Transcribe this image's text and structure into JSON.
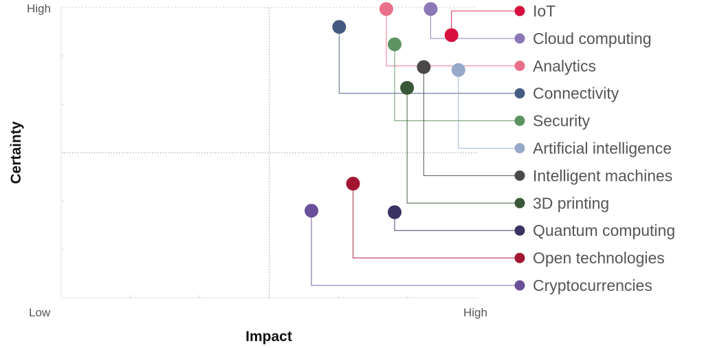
{
  "chart_data": {
    "type": "scatter",
    "title": "",
    "xlabel": "Impact",
    "ylabel": "Certainty",
    "xlim": [
      0,
      6
    ],
    "ylim": [
      0,
      6
    ],
    "x_tick_labels": [
      "Low",
      "High"
    ],
    "y_tick_labels": [
      "High"
    ],
    "grid": true,
    "legend_position": "right",
    "series": [
      {
        "name": "IoT",
        "x": 5.63,
        "y": 5.43,
        "color": "#d7103d"
      },
      {
        "name": "Cloud computing",
        "x": 5.33,
        "y": 5.97,
        "color": "#8c78b6"
      },
      {
        "name": "Analytics",
        "x": 4.69,
        "y": 5.97,
        "color": "#e8708a"
      },
      {
        "name": "Connectivity",
        "x": 4.01,
        "y": 5.6,
        "color": "#455a80"
      },
      {
        "name": "Security",
        "x": 4.81,
        "y": 5.24,
        "color": "#5e9261"
      },
      {
        "name": "Artificial intelligence",
        "x": 5.73,
        "y": 4.71,
        "color": "#97a9c8"
      },
      {
        "name": "Intelligent machines",
        "x": 5.23,
        "y": 4.77,
        "color": "#4b4848"
      },
      {
        "name": "3D printing",
        "x": 4.99,
        "y": 4.34,
        "color": "#3a5738"
      },
      {
        "name": "Quantum computing",
        "x": 4.81,
        "y": 1.77,
        "color": "#3a3260"
      },
      {
        "name": "Open technologies",
        "x": 4.21,
        "y": 2.36,
        "color": "#a31632"
      },
      {
        "name": "Cryptocurrencies",
        "x": 3.61,
        "y": 1.8,
        "color": "#6a4f9a"
      }
    ]
  }
}
